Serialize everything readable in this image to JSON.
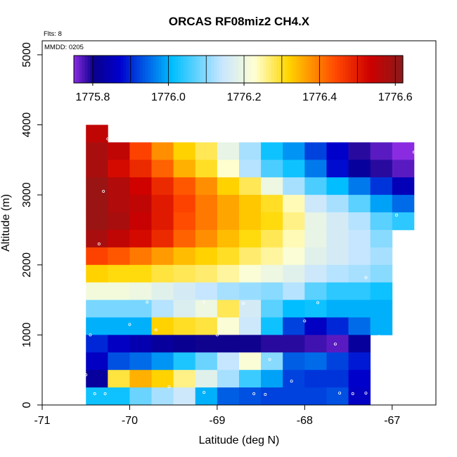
{
  "chart_data": {
    "type": "heatmap",
    "title": "ORCAS RF08miz2 CH4.X",
    "xlabel": "Latitude (deg N)",
    "ylabel": "Altitude (m)",
    "xlim": [
      -71,
      -66.5
    ],
    "ylim": [
      0,
      5200
    ],
    "x_ticks": [
      -71,
      -70,
      -69,
      -68,
      -67
    ],
    "y_ticks": [
      0,
      1000,
      2000,
      3000,
      4000,
      5000
    ],
    "annotations": {
      "flights": "Flts: 8",
      "date": "MMDD: 0205"
    },
    "colorbar": {
      "range": [
        1775.75,
        1776.62
      ],
      "ticks": [
        1775.8,
        1776.0,
        1776.2,
        1776.4,
        1776.6
      ],
      "tick_labels": [
        "1775.8",
        "1776.0",
        "1776.2",
        "1776.4",
        "1776.6"
      ]
    },
    "grid": {
      "x_start": -70.5,
      "x_step": 0.25,
      "y_step": 250,
      "rows": [
        {
          "y0": 3750,
          "values": [
            1776.55
          ]
        },
        {
          "y0": 3500,
          "values": [
            1776.58,
            1776.55,
            1776.45,
            1776.38,
            1776.32,
            1776.28,
            1776.19,
            1776.12,
            1776.02,
            1775.98,
            1775.92,
            1775.87,
            1775.79,
            1775.77,
            1775.73
          ]
        },
        {
          "y0": 3250,
          "values": [
            1776.58,
            1776.52,
            1776.48,
            1776.42,
            1776.35,
            1776.3,
            1776.23,
            1776.13,
            1776.06,
            1776.02,
            1775.96,
            1775.88,
            1775.82,
            1775.79,
            1775.77
          ]
        },
        {
          "y0": 3000,
          "values": [
            1776.6,
            1776.57,
            1776.53,
            1776.48,
            1776.43,
            1776.38,
            1776.32,
            1776.28,
            1776.2,
            1776.12,
            1776.06,
            1776.01,
            1775.96,
            1775.91,
            1775.85
          ]
        },
        {
          "y0": 2750,
          "values": [
            1776.6,
            1776.57,
            1776.55,
            1776.5,
            1776.45,
            1776.4,
            1776.36,
            1776.33,
            1776.3,
            1776.24,
            1776.15,
            1776.12,
            1776.07,
            1775.99,
            1775.95
          ]
        },
        {
          "y0": 2500,
          "values": [
            1776.6,
            1776.58,
            1776.54,
            1776.5,
            1776.44,
            1776.4,
            1776.36,
            1776.33,
            1776.31,
            1776.26,
            1776.19,
            1776.16,
            1776.13,
            1776.07,
            1776.04
          ]
        },
        {
          "y0": 2250,
          "values": [
            1776.58,
            1776.55,
            1776.52,
            1776.48,
            1776.42,
            1776.38,
            1776.34,
            1776.31,
            1776.28,
            1776.24,
            1776.19,
            1776.16,
            1776.14,
            1776.1
          ]
        },
        {
          "y0": 2000,
          "values": [
            1776.45,
            1776.43,
            1776.4,
            1776.37,
            1776.34,
            1776.32,
            1776.3,
            1776.27,
            1776.25,
            1776.22,
            1776.18,
            1776.16,
            1776.14,
            1776.12
          ]
        },
        {
          "y0": 1750,
          "values": [
            1776.32,
            1776.31,
            1776.31,
            1776.29,
            1776.28,
            1776.27,
            1776.25,
            1776.22,
            1776.2,
            1776.18,
            1776.15,
            1776.13,
            1776.12,
            1776.1
          ]
        },
        {
          "y0": 1500,
          "values": [
            1776.21,
            1776.21,
            1776.2,
            1776.18,
            1776.16,
            1776.14,
            1776.12,
            1776.11,
            1776.1,
            1776.13,
            1776.07,
            1776.04,
            1776.04,
            1776.02
          ]
        },
        {
          "y0": 1250,
          "values": [
            1776.09,
            1776.09,
            1776.09,
            1776.13,
            1776.17,
            1776.2,
            1776.28,
            1776.16,
            1776.07,
            1776.01,
            1776.02,
            1776.0,
            1776.0,
            1776.0
          ]
        },
        {
          "y0": 1000,
          "values": [
            1776.0,
            1776.0,
            1776.0,
            1776.32,
            1776.3,
            1776.29,
            1776.22,
            1776.15,
            1776.02,
            1775.92,
            1775.86,
            1775.9,
            1775.95,
            1776.0
          ]
        },
        {
          "y0": 750,
          "values": [
            1775.9,
            1775.86,
            1775.84,
            1775.82,
            1775.81,
            1775.8,
            1775.8,
            1775.8,
            1775.79,
            1775.79,
            1775.78,
            1775.77,
            1775.82
          ]
        },
        {
          "y0": 500,
          "values": [
            1775.86,
            1775.93,
            1775.95,
            1775.98,
            1776.03,
            1776.08,
            1776.14,
            1776.22,
            1776.1,
            1775.94,
            1775.95,
            1775.92,
            1775.89
          ]
        },
        {
          "y0": 250,
          "values": [
            1775.82,
            1776.29,
            1776.35,
            1776.32,
            1776.26,
            1776.18,
            1776.12,
            1776.05,
            1775.99,
            1775.92,
            1775.91,
            1775.91,
            1775.87
          ]
        },
        {
          "y0": 0,
          "values": [
            1776.02,
            1776.02,
            1776.08,
            1776.12,
            1776.15,
            1776.0,
            1775.94,
            1775.93,
            1775.92,
            1775.92,
            1775.92,
            1775.93,
            1775.86
          ]
        }
      ]
    },
    "points": [
      {
        "lat": -70.25,
        "alt": 3800
      },
      {
        "lat": -70.3,
        "alt": 3050
      },
      {
        "lat": -70.35,
        "alt": 2300
      },
      {
        "lat": -70.45,
        "alt": 1000
      },
      {
        "lat": -70.0,
        "alt": 1150
      },
      {
        "lat": -69.8,
        "alt": 1470
      },
      {
        "lat": -69.7,
        "alt": 1070
      },
      {
        "lat": -69.15,
        "alt": 1470
      },
      {
        "lat": -69.0,
        "alt": 1000
      },
      {
        "lat": -68.7,
        "alt": 1450
      },
      {
        "lat": -68.4,
        "alt": 650
      },
      {
        "lat": -68.0,
        "alt": 1200
      },
      {
        "lat": -67.85,
        "alt": 1460
      },
      {
        "lat": -67.65,
        "alt": 870
      },
      {
        "lat": -67.15,
        "alt": 980
      },
      {
        "lat": -66.95,
        "alt": 2710
      },
      {
        "lat": -66.75,
        "alt": 3610
      },
      {
        "lat": -67.3,
        "alt": 1820
      },
      {
        "lat": -70.5,
        "alt": 430
      },
      {
        "lat": -70.4,
        "alt": 160
      },
      {
        "lat": -70.28,
        "alt": 160
      },
      {
        "lat": -69.55,
        "alt": 260
      },
      {
        "lat": -69.15,
        "alt": 180
      },
      {
        "lat": -68.58,
        "alt": 160
      },
      {
        "lat": -68.15,
        "alt": 340
      },
      {
        "lat": -68.45,
        "alt": 150
      },
      {
        "lat": -67.6,
        "alt": 170
      },
      {
        "lat": -67.45,
        "alt": 160
      },
      {
        "lat": -67.3,
        "alt": 170
      }
    ]
  }
}
